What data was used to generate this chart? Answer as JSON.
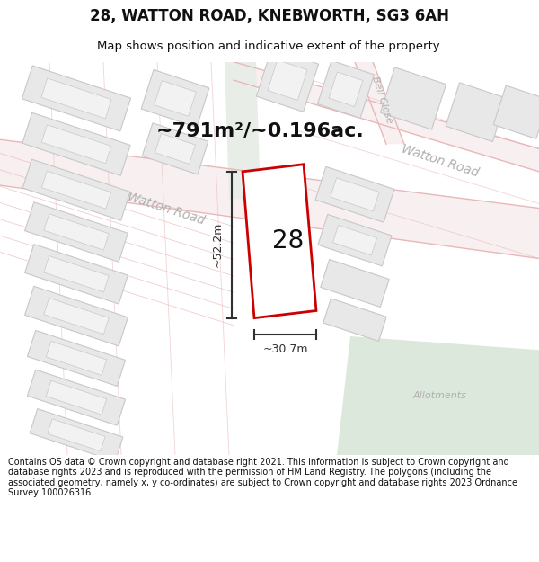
{
  "title": "28, WATTON ROAD, KNEBWORTH, SG3 6AH",
  "subtitle": "Map shows position and indicative extent of the property.",
  "area_text": "~791m²/~0.196ac.",
  "label_28": "28",
  "dim_height": "~52.2m",
  "dim_width": "~30.7m",
  "road_label_mid": "Watton Road",
  "road_label_upper": "Watton Road",
  "road_label_bell": "Bell Close",
  "allotments_label": "Allotments",
  "footer": "Contains OS data © Crown copyright and database right 2021. This information is subject to Crown copyright and database rights 2023 and is reproduced with the permission of HM Land Registry. The polygons (including the associated geometry, namely x, y co-ordinates) are subject to Crown copyright and database rights 2023 Ordnance Survey 100026316.",
  "bg_color": "#ffffff",
  "map_bg": "#ffffff",
  "road_line_color": "#e8b8b8",
  "plot_color": "#cc0000",
  "plot_fill": "#ffffff",
  "green_strip": "#e8ede8",
  "green_allotments": "#dce8dc",
  "building_fill": "#e8e8e8",
  "building_stroke": "#c8c8c8",
  "building_inner_fill": "#f2f2f2",
  "dim_line_color": "#303030",
  "text_color": "#101010",
  "road_label_color": "#b0b0b0",
  "area_text_color": "#101010"
}
